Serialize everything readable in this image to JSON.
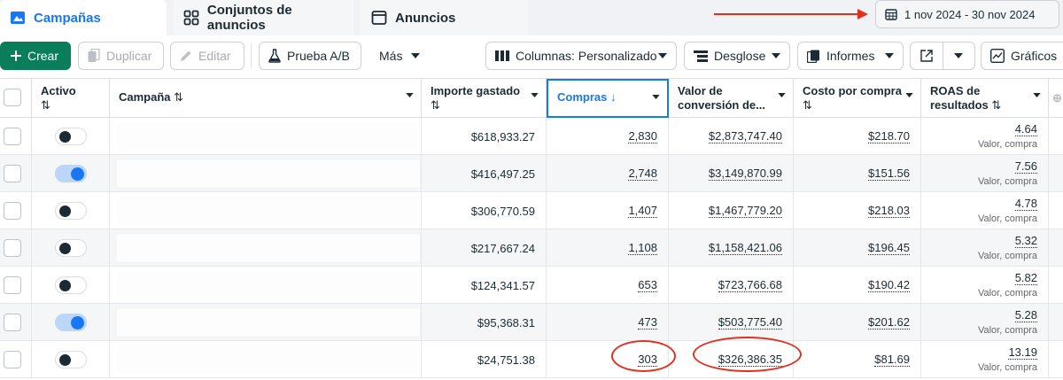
{
  "tabs": [
    {
      "label": "Campañas"
    },
    {
      "label": "Conjuntos de anuncios"
    },
    {
      "label": "Anuncios"
    }
  ],
  "date_range": "1 nov 2024 - 30 nov 2024",
  "toolbar": {
    "create": "Crear",
    "duplicate": "Duplicar",
    "edit": "Editar",
    "ab_test": "Prueba A/B",
    "more": "Más",
    "columns": "Columnas: Personalizado",
    "breakdown": "Desglose",
    "reports": "Informes",
    "graphs": "Gráficos"
  },
  "columns": {
    "active": "Activo",
    "campaign": "Campaña",
    "spent": "Importe gastado",
    "purchases": "Compras",
    "conv_value_1": "Valor de",
    "conv_value_2": "conversión de...",
    "cost_per_purchase": "Costo por compra",
    "roas_1": "ROAS de",
    "roas_2": "resultados"
  },
  "roas_sub": "Valor, compra",
  "rows": [
    {
      "active": false,
      "spent": "$618,933.27",
      "purchases": "2,830",
      "value": "$2,873,747.40",
      "cpp": "$218.70",
      "roas": "4.64"
    },
    {
      "active": true,
      "spent": "$416,497.25",
      "purchases": "2,748",
      "value": "$3,149,870.99",
      "cpp": "$151.56",
      "roas": "7.56"
    },
    {
      "active": false,
      "spent": "$306,770.59",
      "purchases": "1,407",
      "value": "$1,467,779.20",
      "cpp": "$218.03",
      "roas": "4.78"
    },
    {
      "active": false,
      "spent": "$217,667.24",
      "purchases": "1,108",
      "value": "$1,158,421.06",
      "cpp": "$196.45",
      "roas": "5.32"
    },
    {
      "active": false,
      "spent": "$124,341.57",
      "purchases": "653",
      "value": "$723,766.68",
      "cpp": "$190.42",
      "roas": "5.82"
    },
    {
      "active": true,
      "spent": "$95,368.31",
      "purchases": "473",
      "value": "$503,775.40",
      "cpp": "$201.62",
      "roas": "5.28"
    },
    {
      "active": false,
      "spent": "$24,751.38",
      "purchases": "303",
      "value": "$326,386.35",
      "cpp": "$81.69",
      "roas": "13.19"
    }
  ],
  "colors": {
    "accent": "#1877f2",
    "create": "#0a7d5a",
    "annotation": "#e0301e"
  }
}
